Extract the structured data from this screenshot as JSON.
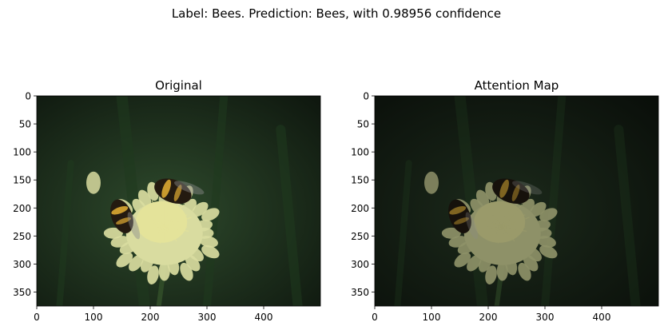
{
  "figure": {
    "suptitle": "Label: Bees. Prediction: Bees, with 0.98956 confidence"
  },
  "chart_data": [
    {
      "type": "image",
      "title": "Original",
      "xlim": [
        0,
        500
      ],
      "ylim": [
        375,
        0
      ],
      "x_ticks": [
        0,
        100,
        200,
        300,
        400
      ],
      "y_ticks": [
        0,
        50,
        100,
        150,
        200,
        250,
        300,
        350
      ],
      "brightness": 1.0,
      "colors": {
        "background": "#1b2a1b",
        "flower": "#d9dca0",
        "flower_center": "#e4e39a",
        "bee": "#241a10",
        "bee_stripe": "#c99a2e"
      }
    },
    {
      "type": "image",
      "title": "Attention Map",
      "xlim": [
        0,
        500
      ],
      "ylim": [
        375,
        0
      ],
      "x_ticks": [
        0,
        100,
        200,
        300,
        400
      ],
      "y_ticks": [
        0,
        50,
        100,
        150,
        200,
        250,
        300,
        350
      ],
      "brightness": 0.6,
      "colors": {
        "background": "#121812",
        "flower": "#8e9168",
        "flower_center": "#9a9a6a",
        "bee": "#16110b",
        "bee_stripe": "#7f6421"
      }
    }
  ]
}
